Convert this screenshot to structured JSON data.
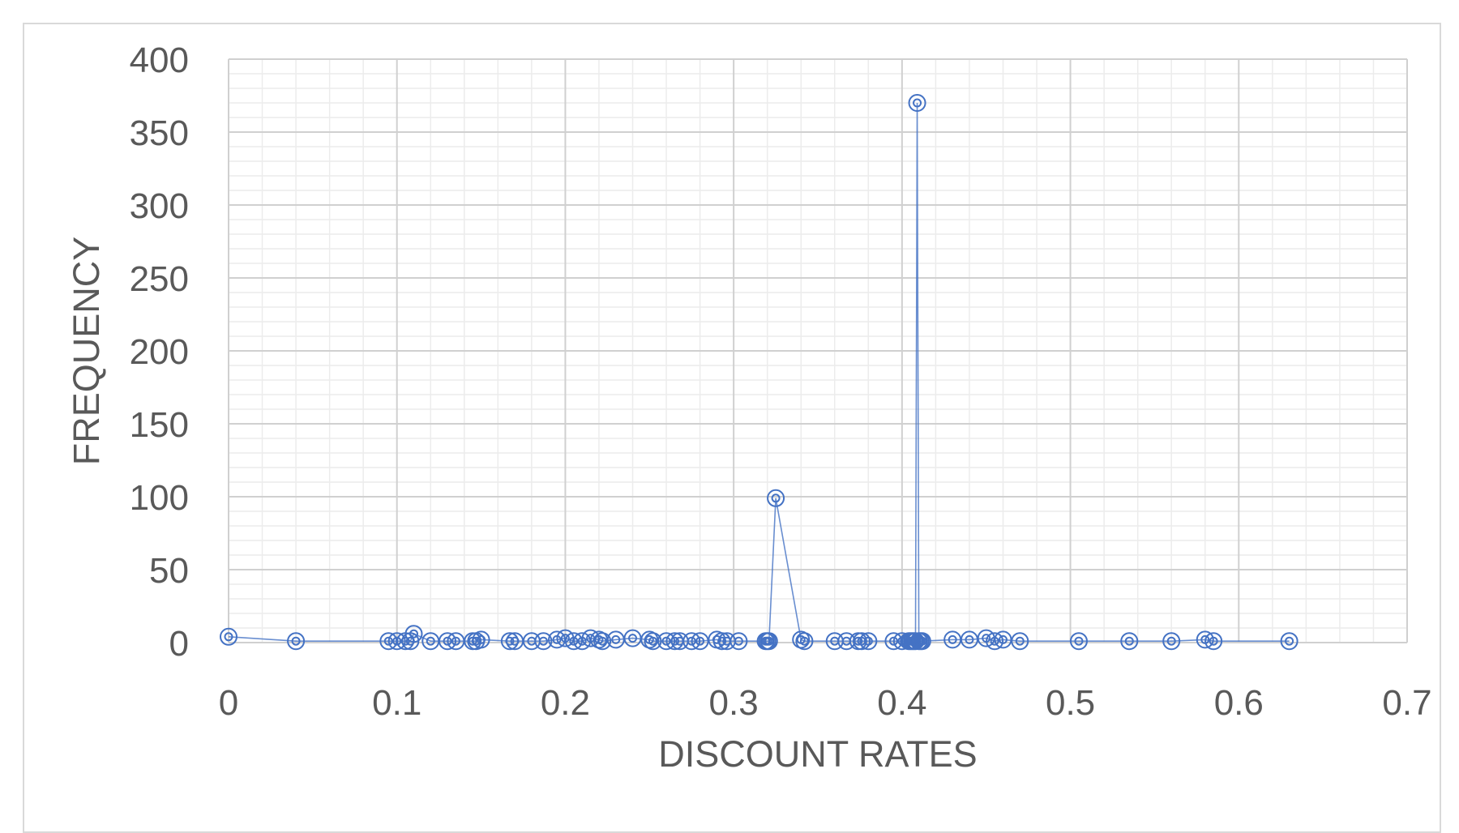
{
  "chart_data": {
    "type": "scatter",
    "title": "",
    "xlabel": "DISCOUNT RATES",
    "ylabel": "FREQUENCY",
    "xlim": [
      0,
      0.7
    ],
    "ylim": [
      0,
      400
    ],
    "xticks": [
      "0",
      "0.1",
      "0.2",
      "0.3",
      "0.4",
      "0.5",
      "0.6",
      "0.7"
    ],
    "yticks": [
      "0",
      "50",
      "100",
      "150",
      "200",
      "250",
      "300",
      "350",
      "400"
    ],
    "grid": true,
    "minor_grid": true,
    "series_color": "#4472c4",
    "marker": "double-circle",
    "connected_with_lines": true,
    "points": [
      [
        0.0,
        4
      ],
      [
        0.04,
        1
      ],
      [
        0.095,
        1
      ],
      [
        0.1,
        1
      ],
      [
        0.105,
        1
      ],
      [
        0.108,
        1
      ],
      [
        0.11,
        6
      ],
      [
        0.12,
        1
      ],
      [
        0.13,
        1
      ],
      [
        0.135,
        1
      ],
      [
        0.145,
        1
      ],
      [
        0.147,
        1
      ],
      [
        0.15,
        2
      ],
      [
        0.167,
        1
      ],
      [
        0.17,
        1
      ],
      [
        0.18,
        1
      ],
      [
        0.187,
        1
      ],
      [
        0.195,
        2
      ],
      [
        0.2,
        3
      ],
      [
        0.205,
        1
      ],
      [
        0.21,
        1
      ],
      [
        0.215,
        3
      ],
      [
        0.22,
        2
      ],
      [
        0.222,
        1
      ],
      [
        0.23,
        2
      ],
      [
        0.24,
        3
      ],
      [
        0.25,
        2
      ],
      [
        0.252,
        1
      ],
      [
        0.26,
        1
      ],
      [
        0.265,
        1
      ],
      [
        0.268,
        1
      ],
      [
        0.275,
        1
      ],
      [
        0.28,
        1
      ],
      [
        0.29,
        2
      ],
      [
        0.293,
        1
      ],
      [
        0.296,
        1
      ],
      [
        0.303,
        1
      ],
      [
        0.319,
        1
      ],
      [
        0.32,
        1
      ],
      [
        0.321,
        1
      ],
      [
        0.325,
        99
      ],
      [
        0.34,
        2
      ],
      [
        0.342,
        1
      ],
      [
        0.36,
        1
      ],
      [
        0.367,
        1
      ],
      [
        0.374,
        1
      ],
      [
        0.376,
        1
      ],
      [
        0.38,
        1
      ],
      [
        0.395,
        1
      ],
      [
        0.4,
        1
      ],
      [
        0.404,
        1
      ],
      [
        0.405,
        1
      ],
      [
        0.406,
        1
      ],
      [
        0.407,
        1
      ],
      [
        0.408,
        1
      ],
      [
        0.409,
        370
      ],
      [
        0.41,
        1
      ],
      [
        0.411,
        1
      ],
      [
        0.412,
        1
      ],
      [
        0.43,
        2
      ],
      [
        0.44,
        2
      ],
      [
        0.45,
        3
      ],
      [
        0.455,
        1
      ],
      [
        0.46,
        2
      ],
      [
        0.47,
        1
      ],
      [
        0.505,
        1
      ],
      [
        0.535,
        1
      ],
      [
        0.56,
        1
      ],
      [
        0.58,
        2
      ],
      [
        0.585,
        1
      ],
      [
        0.63,
        1
      ]
    ]
  }
}
